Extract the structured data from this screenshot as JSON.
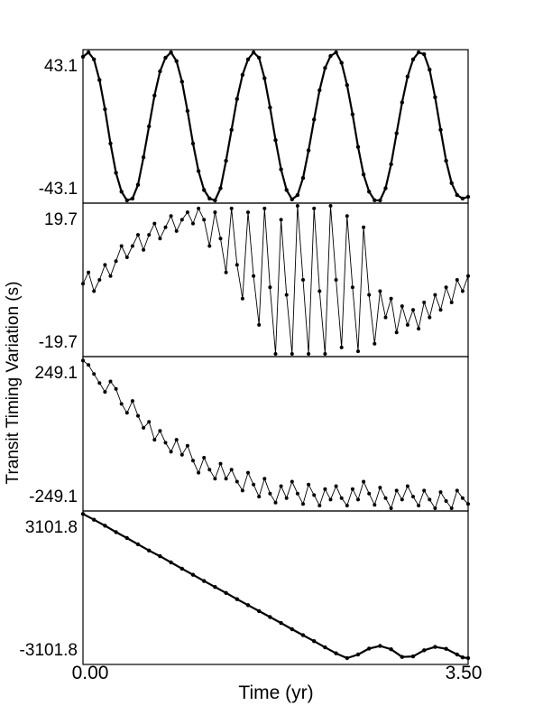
{
  "figure": {
    "ylabel": "Transit Timing Variation (s)",
    "xlabel": "Time (yr)",
    "x_tick_labels": [
      "0.00",
      "3.50"
    ]
  },
  "chart_data": [
    {
      "type": "line",
      "panel": 1,
      "xlim": [
        0,
        3.5
      ],
      "ylim": [
        -43.1,
        43.1
      ],
      "y_tick_labels": [
        "43.1",
        "-43.1"
      ],
      "marker": "dot",
      "line_width": "thick",
      "series": [
        {
          "values": [
            [
              0.0,
              40.5
            ],
            [
              0.05,
              43.1
            ],
            [
              0.1,
              39.0
            ],
            [
              0.15,
              27.0
            ],
            [
              0.2,
              10.0
            ],
            [
              0.25,
              -10.0
            ],
            [
              0.3,
              -27.0
            ],
            [
              0.35,
              -38.0
            ],
            [
              0.4,
              -43.1
            ],
            [
              0.45,
              -42.0
            ],
            [
              0.5,
              -34.0
            ],
            [
              0.55,
              -18.0
            ],
            [
              0.6,
              0.0
            ],
            [
              0.65,
              18.0
            ],
            [
              0.7,
              32.0
            ],
            [
              0.75,
              40.0
            ],
            [
              0.8,
              43.1
            ],
            [
              0.85,
              38.0
            ],
            [
              0.9,
              26.0
            ],
            [
              0.95,
              9.0
            ],
            [
              1.0,
              -10.0
            ],
            [
              1.05,
              -26.0
            ],
            [
              1.1,
              -37.0
            ],
            [
              1.15,
              -42.0
            ],
            [
              1.2,
              -43.1
            ],
            [
              1.25,
              -36.0
            ],
            [
              1.3,
              -20.0
            ],
            [
              1.35,
              -2.0
            ],
            [
              1.4,
              16.0
            ],
            [
              1.45,
              30.0
            ],
            [
              1.5,
              39.0
            ],
            [
              1.55,
              43.1
            ],
            [
              1.6,
              40.0
            ],
            [
              1.65,
              28.0
            ],
            [
              1.7,
              11.0
            ],
            [
              1.75,
              -8.0
            ],
            [
              1.8,
              -25.0
            ],
            [
              1.85,
              -37.0
            ],
            [
              1.9,
              -42.5
            ],
            [
              1.95,
              -40.0
            ],
            [
              2.0,
              -30.0
            ],
            [
              2.05,
              -14.0
            ],
            [
              2.1,
              4.0
            ],
            [
              2.15,
              21.0
            ],
            [
              2.2,
              34.0
            ],
            [
              2.25,
              41.0
            ],
            [
              2.3,
              43.1
            ],
            [
              2.35,
              37.0
            ],
            [
              2.4,
              24.0
            ],
            [
              2.45,
              7.0
            ],
            [
              2.5,
              -12.0
            ],
            [
              2.55,
              -28.0
            ],
            [
              2.6,
              -38.0
            ],
            [
              2.65,
              -43.0
            ],
            [
              2.7,
              -43.1
            ],
            [
              2.75,
              -36.0
            ],
            [
              2.8,
              -22.0
            ],
            [
              2.85,
              -4.0
            ],
            [
              2.9,
              14.0
            ],
            [
              2.95,
              29.0
            ],
            [
              3.0,
              39.0
            ],
            [
              3.05,
              43.1
            ],
            [
              3.1,
              42.0
            ],
            [
              3.15,
              33.0
            ],
            [
              3.2,
              17.0
            ],
            [
              3.25,
              -2.0
            ],
            [
              3.3,
              -20.0
            ],
            [
              3.35,
              -33.0
            ],
            [
              3.4,
              -40.0
            ],
            [
              3.45,
              -42.0
            ],
            [
              3.5,
              -41.0
            ]
          ]
        }
      ]
    },
    {
      "type": "line",
      "panel": 2,
      "xlim": [
        0,
        3.5
      ],
      "ylim": [
        -19.7,
        19.7
      ],
      "y_tick_labels": [
        "19.7",
        "-19.7"
      ],
      "marker": "dot",
      "line_width": "thin",
      "series": [
        {
          "values": [
            [
              0.0,
              -1.0
            ],
            [
              0.05,
              2.0
            ],
            [
              0.1,
              -3.0
            ],
            [
              0.15,
              0.0
            ],
            [
              0.2,
              4.0
            ],
            [
              0.25,
              1.0
            ],
            [
              0.3,
              5.0
            ],
            [
              0.35,
              9.0
            ],
            [
              0.4,
              6.0
            ],
            [
              0.45,
              9.0
            ],
            [
              0.5,
              12.0
            ],
            [
              0.55,
              8.0
            ],
            [
              0.6,
              12.0
            ],
            [
              0.65,
              15.0
            ],
            [
              0.7,
              11.0
            ],
            [
              0.75,
              14.0
            ],
            [
              0.8,
              17.0
            ],
            [
              0.85,
              13.0
            ],
            [
              0.9,
              16.0
            ],
            [
              0.95,
              18.0
            ],
            [
              1.0,
              15.0
            ],
            [
              1.05,
              19.0
            ],
            [
              1.1,
              16.0
            ],
            [
              1.15,
              9.0
            ],
            [
              1.2,
              18.0
            ],
            [
              1.25,
              11.0
            ],
            [
              1.3,
              2.0
            ],
            [
              1.35,
              19.0
            ],
            [
              1.4,
              4.0
            ],
            [
              1.45,
              -5.0
            ],
            [
              1.5,
              18.0
            ],
            [
              1.55,
              1.0
            ],
            [
              1.6,
              -12.0
            ],
            [
              1.65,
              19.0
            ],
            [
              1.7,
              -2.0
            ],
            [
              1.75,
              -19.7
            ],
            [
              1.8,
              16.0
            ],
            [
              1.85,
              -4.0
            ],
            [
              1.9,
              -19.7
            ],
            [
              1.95,
              19.7
            ],
            [
              2.0,
              0.0
            ],
            [
              2.05,
              -19.7
            ],
            [
              2.1,
              19.0
            ],
            [
              2.15,
              -3.0
            ],
            [
              2.2,
              -19.7
            ],
            [
              2.25,
              19.7
            ],
            [
              2.3,
              0.0
            ],
            [
              2.35,
              -18.0
            ],
            [
              2.4,
              17.0
            ],
            [
              2.45,
              -2.0
            ],
            [
              2.5,
              -19.0
            ],
            [
              2.55,
              14.0
            ],
            [
              2.6,
              -4.0
            ],
            [
              2.65,
              -17.0
            ],
            [
              2.7,
              -3.0
            ],
            [
              2.75,
              -10.0
            ],
            [
              2.8,
              -5.0
            ],
            [
              2.85,
              -14.0
            ],
            [
              2.9,
              -7.0
            ],
            [
              2.95,
              -12.0
            ],
            [
              3.0,
              -8.0
            ],
            [
              3.05,
              -13.0
            ],
            [
              3.1,
              -6.0
            ],
            [
              3.15,
              -10.0
            ],
            [
              3.2,
              -4.0
            ],
            [
              3.25,
              -8.0
            ],
            [
              3.3,
              -2.0
            ],
            [
              3.35,
              -6.0
            ],
            [
              3.4,
              0.0
            ],
            [
              3.45,
              -3.0
            ],
            [
              3.5,
              1.0
            ]
          ]
        }
      ]
    },
    {
      "type": "line",
      "panel": 3,
      "xlim": [
        0,
        3.5
      ],
      "ylim": [
        -249.1,
        249.1
      ],
      "y_tick_labels": [
        "249.1",
        "-249.1"
      ],
      "marker": "dot",
      "line_width": "thin",
      "series": [
        {
          "values": [
            [
              0.0,
              245.0
            ],
            [
              0.05,
              230.0
            ],
            [
              0.1,
              200.0
            ],
            [
              0.15,
              170.0
            ],
            [
              0.2,
              140.0
            ],
            [
              0.25,
              175.0
            ],
            [
              0.3,
              150.0
            ],
            [
              0.35,
              100.0
            ],
            [
              0.4,
              70.0
            ],
            [
              0.45,
              110.0
            ],
            [
              0.5,
              60.0
            ],
            [
              0.55,
              20.0
            ],
            [
              0.6,
              40.0
            ],
            [
              0.65,
              -20.0
            ],
            [
              0.7,
              10.0
            ],
            [
              0.75,
              -30.0
            ],
            [
              0.8,
              -60.0
            ],
            [
              0.85,
              -20.0
            ],
            [
              0.9,
              -70.0
            ],
            [
              0.95,
              -40.0
            ],
            [
              1.0,
              -90.0
            ],
            [
              1.05,
              -130.0
            ],
            [
              1.1,
              -80.0
            ],
            [
              1.15,
              -120.0
            ],
            [
              1.2,
              -150.0
            ],
            [
              1.25,
              -100.0
            ],
            [
              1.3,
              -150.0
            ],
            [
              1.35,
              -120.0
            ],
            [
              1.4,
              -160.0
            ],
            [
              1.45,
              -190.0
            ],
            [
              1.5,
              -130.0
            ],
            [
              1.55,
              -170.0
            ],
            [
              1.6,
              -210.0
            ],
            [
              1.65,
              -150.0
            ],
            [
              1.7,
              -200.0
            ],
            [
              1.75,
              -230.0
            ],
            [
              1.8,
              -175.0
            ],
            [
              1.85,
              -215.0
            ],
            [
              1.9,
              -160.0
            ],
            [
              1.95,
              -200.0
            ],
            [
              2.0,
              -235.0
            ],
            [
              2.05,
              -170.0
            ],
            [
              2.1,
              -205.0
            ],
            [
              2.15,
              -240.0
            ],
            [
              2.2,
              -185.0
            ],
            [
              2.25,
              -220.0
            ],
            [
              2.3,
              -175.0
            ],
            [
              2.35,
              -215.0
            ],
            [
              2.4,
              -240.0
            ],
            [
              2.45,
              -185.0
            ],
            [
              2.5,
              -220.0
            ],
            [
              2.55,
              -160.0
            ],
            [
              2.6,
              -200.0
            ],
            [
              2.65,
              -238.0
            ],
            [
              2.7,
              -180.0
            ],
            [
              2.75,
              -215.0
            ],
            [
              2.8,
              -249.0
            ],
            [
              2.85,
              -190.0
            ],
            [
              2.9,
              -220.0
            ],
            [
              2.95,
              -175.0
            ],
            [
              3.0,
              -210.0
            ],
            [
              3.05,
              -240.0
            ],
            [
              3.1,
              -190.0
            ],
            [
              3.15,
              -220.0
            ],
            [
              3.2,
              -249.0
            ],
            [
              3.25,
              -195.0
            ],
            [
              3.3,
              -225.0
            ],
            [
              3.35,
              -249.0
            ],
            [
              3.4,
              -190.0
            ],
            [
              3.45,
              -215.0
            ],
            [
              3.5,
              -235.0
            ]
          ]
        }
      ]
    },
    {
      "type": "line",
      "panel": 4,
      "xlim": [
        0,
        3.5
      ],
      "ylim": [
        -3101.8,
        3101.8
      ],
      "y_tick_labels": [
        "3101.8",
        "-3101.8"
      ],
      "marker": "dot",
      "line_width": "thick",
      "series": [
        {
          "values": [
            [
              0.0,
              3090.0
            ],
            [
              0.1,
              2850.0
            ],
            [
              0.2,
              2600.0
            ],
            [
              0.3,
              2330.0
            ],
            [
              0.4,
              2080.0
            ],
            [
              0.5,
              1820.0
            ],
            [
              0.6,
              1560.0
            ],
            [
              0.7,
              1320.0
            ],
            [
              0.8,
              1060.0
            ],
            [
              0.9,
              800.0
            ],
            [
              1.0,
              540.0
            ],
            [
              1.1,
              280.0
            ],
            [
              1.2,
              30.0
            ],
            [
              1.3,
              -220.0
            ],
            [
              1.4,
              -480.0
            ],
            [
              1.5,
              -730.0
            ],
            [
              1.6,
              -980.0
            ],
            [
              1.7,
              -1230.0
            ],
            [
              1.8,
              -1480.0
            ],
            [
              1.9,
              -1740.0
            ],
            [
              2.0,
              -1990.0
            ],
            [
              2.1,
              -2240.0
            ],
            [
              2.2,
              -2500.0
            ],
            [
              2.3,
              -2750.0
            ],
            [
              2.4,
              -2950.0
            ],
            [
              2.5,
              -2800.0
            ],
            [
              2.6,
              -2550.0
            ],
            [
              2.7,
              -2440.0
            ],
            [
              2.8,
              -2580.0
            ],
            [
              2.9,
              -2900.0
            ],
            [
              3.0,
              -2880.0
            ],
            [
              3.1,
              -2620.0
            ],
            [
              3.2,
              -2480.0
            ],
            [
              3.3,
              -2560.0
            ],
            [
              3.4,
              -2800.0
            ],
            [
              3.45,
              -2920.0
            ],
            [
              3.5,
              -2950.0
            ]
          ]
        }
      ]
    }
  ]
}
